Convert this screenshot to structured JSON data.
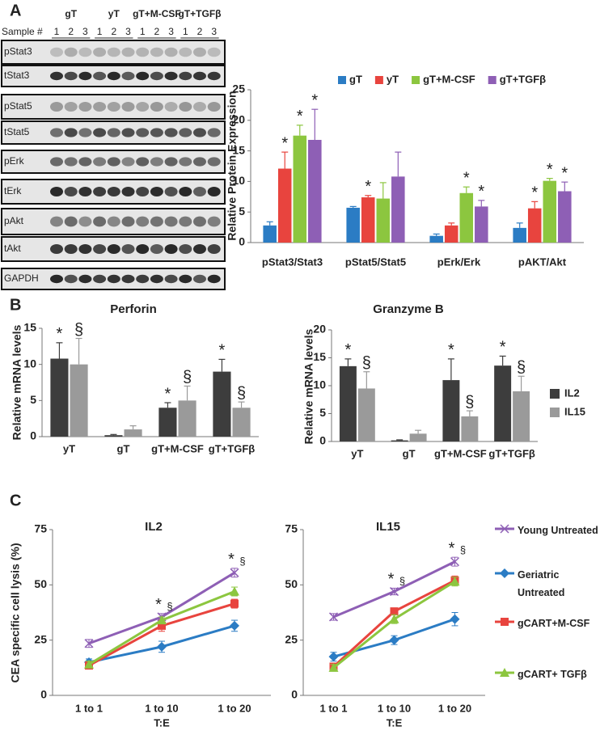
{
  "panels": [
    "A",
    "B",
    "C"
  ],
  "blot": {
    "sample_label": "Sample #",
    "groups": [
      "gT",
      "yT",
      "gT+M-CSF",
      "gT+TGFβ"
    ],
    "lanes": [
      "1",
      "2",
      "3"
    ],
    "rows": [
      "pStat3",
      "tStat3",
      "pStat5",
      "tStat5",
      "pErk",
      "tErk",
      "pAkt",
      "tAkt",
      "GAPDH"
    ]
  },
  "chart_data": [
    {
      "type": "bar",
      "y_label": "Relative Protein Expression",
      "legend": "top",
      "categories": [
        "pStat3/Stat3",
        "pStat5/Stat5",
        "pErk/Erk",
        "pAKT/Akt"
      ],
      "ylim": [
        0,
        25
      ],
      "yticks": [
        0,
        5,
        10,
        15,
        20,
        25
      ],
      "series": [
        {
          "name": "gT",
          "color": "#2b7cc4",
          "values": [
            2.8,
            5.7,
            1.1,
            2.4
          ],
          "errors": [
            0.6,
            0.2,
            0.3,
            0.8
          ],
          "significance": [
            null,
            null,
            null,
            null
          ]
        },
        {
          "name": "yT",
          "color": "#e8443e",
          "values": [
            12.1,
            7.4,
            2.8,
            5.6
          ],
          "errors": [
            2.7,
            0.3,
            0.4,
            1.1
          ],
          "significance": [
            "*",
            "*",
            null,
            "*"
          ]
        },
        {
          "name": "gT+M-CSF",
          "color": "#8cc63f",
          "values": [
            17.5,
            7.2,
            8.1,
            10.1
          ],
          "errors": [
            1.7,
            2.6,
            1.0,
            0.4
          ],
          "significance": [
            "*",
            null,
            "*",
            "*"
          ]
        },
        {
          "name": "gT+TGFβ",
          "color": "#8e5fb5",
          "values": [
            16.8,
            10.8,
            5.9,
            8.4
          ],
          "errors": [
            5.0,
            4.0,
            1.0,
            1.5
          ],
          "significance": [
            "*",
            null,
            "*",
            "*"
          ]
        }
      ]
    },
    {
      "type": "bar",
      "title": "Perforin",
      "y_label": "Relative mRNA levels",
      "categories": [
        "yT",
        "gT",
        "gT+M-CSF",
        "gT+TGFβ"
      ],
      "ylim": [
        0,
        15
      ],
      "yticks": [
        0,
        5,
        10,
        15
      ],
      "series": [
        {
          "color": "#3d3d3d",
          "values": [
            10.8,
            0.2,
            4.0,
            9.0
          ],
          "errors": [
            2.2,
            0.1,
            0.7,
            1.7
          ],
          "significance": [
            "*",
            null,
            "*",
            "*"
          ]
        },
        {
          "color": "#9a9a9a",
          "values": [
            10.0,
            1.0,
            5.0,
            4.0
          ],
          "errors": [
            3.6,
            0.5,
            2.0,
            0.8
          ],
          "significance": [
            "§",
            null,
            "§",
            "§"
          ]
        }
      ]
    },
    {
      "type": "bar",
      "title": "Granzyme B",
      "y_label": "Relative mRNA levels",
      "legend": "right",
      "categories": [
        "yT",
        "gT",
        "gT+M-CSF",
        "gT+TGFβ"
      ],
      "ylim": [
        0,
        20
      ],
      "yticks": [
        0,
        5,
        10,
        15,
        20
      ],
      "series": [
        {
          "name": "IL2",
          "color": "#3d3d3d",
          "values": [
            13.5,
            0.2,
            11.0,
            13.6
          ],
          "errors": [
            1.3,
            0.1,
            3.8,
            1.7
          ],
          "significance": [
            "*",
            null,
            "*",
            "*"
          ]
        },
        {
          "name": "IL15",
          "color": "#9a9a9a",
          "values": [
            9.5,
            1.4,
            4.5,
            9.0
          ],
          "errors": [
            3.0,
            0.6,
            1.0,
            2.7
          ],
          "significance": [
            "§",
            null,
            "§",
            "§"
          ]
        }
      ]
    },
    {
      "type": "line",
      "title": "IL2",
      "y_label": "CEA specific cell lysis (%)",
      "x_label": "T:E",
      "categories": [
        "1 to 1",
        "1 to 10",
        "1 to 20"
      ],
      "ylim": [
        0,
        75
      ],
      "yticks": [
        0,
        25,
        50,
        75
      ],
      "series": [
        {
          "color": "#8e5fb5",
          "marker": "x",
          "values": [
            23.5,
            35.5,
            55.5
          ],
          "errors": [
            1.8,
            1.5,
            2.0
          ]
        },
        {
          "color": "#2b7cc4",
          "marker": "diamond",
          "values": [
            15.0,
            22.0,
            31.5
          ],
          "errors": [
            1.5,
            2.5,
            2.5
          ]
        },
        {
          "color": "#e8443e",
          "marker": "square",
          "values": [
            13.5,
            31.5,
            41.5
          ],
          "errors": [
            1.5,
            2.5,
            2.0
          ],
          "significance": [
            null,
            "*",
            "*"
          ]
        },
        {
          "color": "#8cc63f",
          "marker": "triangle",
          "values": [
            14.0,
            34.0,
            47.0
          ],
          "errors": [
            1.5,
            1.5,
            2.0
          ],
          "significance": [
            null,
            "§",
            "§"
          ]
        }
      ]
    },
    {
      "type": "line",
      "title": "IL15",
      "x_label": "T:E",
      "legend": "right",
      "categories": [
        "1 to 1",
        "1 to 10",
        "1 to 20"
      ],
      "ylim": [
        0,
        75
      ],
      "yticks": [
        0,
        25,
        50,
        75
      ],
      "series": [
        {
          "name": "Young Untreated",
          "color": "#8e5fb5",
          "marker": "x",
          "values": [
            35.5,
            47.0,
            60.5
          ],
          "errors": [
            1.5,
            1.5,
            2.0
          ]
        },
        {
          "name": "Geriatric Untreated",
          "color": "#2b7cc4",
          "marker": "diamond",
          "values": [
            17.5,
            25.0,
            34.5
          ],
          "errors": [
            2.0,
            2.0,
            3.0
          ]
        },
        {
          "name": "gCART+M-CSF",
          "color": "#e8443e",
          "marker": "square",
          "values": [
            13.0,
            38.0,
            52.0
          ],
          "errors": [
            1.5,
            1.5,
            2.0
          ],
          "significance": [
            null,
            "*",
            "*"
          ]
        },
        {
          "name": "gCART+ TGFβ",
          "color": "#8cc63f",
          "marker": "triangle",
          "values": [
            12.5,
            34.5,
            51.5
          ],
          "errors": [
            1.5,
            2.0,
            2.0
          ],
          "significance": [
            null,
            "§",
            "§"
          ]
        }
      ]
    }
  ]
}
